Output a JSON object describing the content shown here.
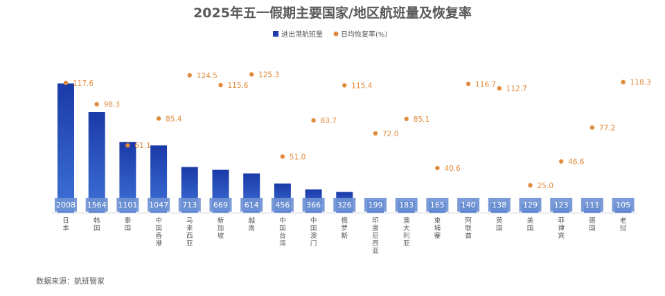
{
  "chart_data": {
    "type": "bar",
    "title": "2025年五一假期主要国家/地区航班量及恢复率",
    "categories": [
      "日本",
      "韩国",
      "泰国",
      "中国香港",
      "马来西亚",
      "新加坡",
      "越南",
      "中国台湾",
      "中国澳门",
      "俄罗斯",
      "印度尼西亚",
      "澳大利亚",
      "柬埔寨",
      "阿联酋",
      "英国",
      "美国",
      "菲律宾",
      "德国",
      "老挝"
    ],
    "series": [
      {
        "name": "进出港航班量",
        "type": "bar",
        "color": "#1f3fae",
        "values": [
          2008,
          1564,
          1101,
          1047,
          713,
          669,
          614,
          456,
          366,
          326,
          199,
          183,
          165,
          140,
          138,
          129,
          123,
          111,
          105
        ]
      },
      {
        "name": "日均恢复率(%)",
        "type": "scatter",
        "color": "#e08a3c",
        "values": [
          117.6,
          98.3,
          61.1,
          85.4,
          124.5,
          115.6,
          125.3,
          51.0,
          83.7,
          115.4,
          72.0,
          85.1,
          40.6,
          116.7,
          112.7,
          25.0,
          46.6,
          77.2,
          118.3
        ]
      }
    ],
    "bar_ylim": [
      0,
      2400
    ],
    "rate_ylim": [
      0,
      140
    ],
    "legend_position": "top-center",
    "grid": false,
    "label_color": "#ffffff",
    "label_box_color": "#6f93d4"
  },
  "footer": {
    "source": "数据来源：航班管家"
  }
}
